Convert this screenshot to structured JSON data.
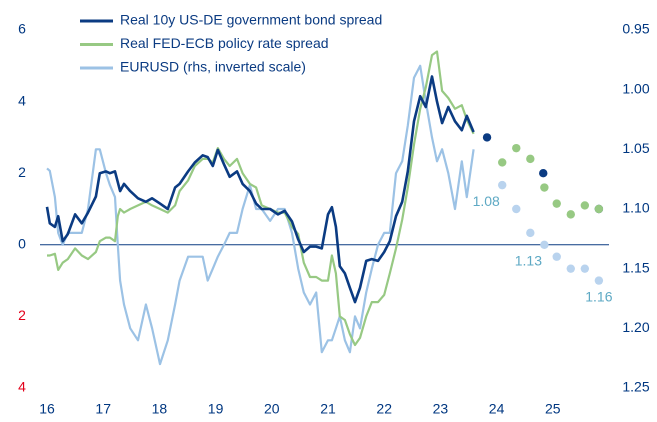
{
  "chart_data": {
    "type": "line",
    "xlim": [
      16,
      26
    ],
    "xticks": [
      16,
      17,
      18,
      19,
      20,
      21,
      22,
      23,
      24,
      25
    ],
    "ylim": [
      -4,
      6
    ],
    "yticks": [
      {
        "value": -4,
        "label": "4"
      },
      {
        "value": -2,
        "label": "2"
      },
      0,
      2,
      4,
      6
    ],
    "negative_tick_color": "#e2001a",
    "tick_color": "#003781",
    "y2lim": [
      1.25,
      0.95
    ],
    "y2ticks": [
      0.95,
      {
        "value": 1,
        "label": "1.00"
      },
      1.05,
      {
        "value": 1.1,
        "label": "1.10"
      },
      1.15,
      {
        "value": 1.2,
        "label": "1.20"
      },
      1.25
    ],
    "legend": "top-left",
    "x": [
      16.0,
      16.05,
      16.14,
      16.2,
      16.28,
      16.37,
      16.5,
      16.62,
      16.73,
      16.87,
      16.94,
      17.05,
      17.12,
      17.21,
      17.26,
      17.3,
      17.37,
      17.48,
      17.62,
      17.76,
      17.87,
      18.01,
      18.15,
      18.28,
      18.36,
      18.51,
      18.63,
      18.77,
      18.86,
      18.95,
      19.04,
      19.15,
      19.25,
      19.38,
      19.48,
      19.61,
      19.72,
      19.82,
      19.97,
      20.11,
      20.23,
      20.36,
      20.47,
      20.57,
      20.68,
      20.79,
      20.89,
      21.0,
      21.07,
      21.14,
      21.21,
      21.3,
      21.39,
      21.48,
      21.57,
      21.68,
      21.78,
      21.89,
      22.0,
      22.1,
      22.21,
      22.32,
      22.42,
      22.53,
      22.64,
      22.74,
      22.85,
      22.94,
      23.03,
      23.14,
      23.26,
      23.38,
      23.47,
      23.59
    ],
    "series": [
      {
        "name": "Real 10y US-DE government bond spread",
        "color": "#0b3b82",
        "values": [
          1.06,
          0.6,
          0.5,
          0.8,
          0.1,
          0.3,
          0.85,
          0.6,
          0.9,
          1.35,
          2.0,
          2.05,
          2.0,
          2.05,
          1.75,
          1.5,
          1.7,
          1.5,
          1.3,
          1.2,
          1.3,
          1.15,
          1.0,
          1.6,
          1.7,
          2.05,
          2.3,
          2.5,
          2.45,
          2.2,
          2.65,
          2.25,
          1.9,
          2.05,
          1.7,
          1.5,
          1.15,
          1.0,
          1.0,
          0.85,
          0.95,
          0.65,
          0.15,
          -0.2,
          -0.05,
          -0.05,
          -0.1,
          0.85,
          1.05,
          0.5,
          -0.6,
          -0.8,
          -1.2,
          -1.6,
          -1.2,
          -0.45,
          -0.4,
          -0.45,
          -0.2,
          0.1,
          0.8,
          1.2,
          2.05,
          3.45,
          4.15,
          3.85,
          4.7,
          4.0,
          3.4,
          3.85,
          3.45,
          3.2,
          3.6,
          3.15
        ]
      },
      {
        "name": "Real FED-ECB policy rate spread",
        "color": "#97c983",
        "values": [
          -0.3,
          -0.3,
          -0.25,
          -0.7,
          -0.5,
          -0.4,
          -0.1,
          -0.3,
          -0.4,
          -0.2,
          0.1,
          0.2,
          0.2,
          0.1,
          0.8,
          1.0,
          0.9,
          1.0,
          1.1,
          1.2,
          1.1,
          1.0,
          0.9,
          1.1,
          1.5,
          1.8,
          2.2,
          2.4,
          2.4,
          2.3,
          2.7,
          2.4,
          2.2,
          2.4,
          2.0,
          1.7,
          1.6,
          1.1,
          1.0,
          0.9,
          0.9,
          0.5,
          0.3,
          -0.5,
          -0.9,
          -0.9,
          -1.0,
          -1.0,
          -0.3,
          -0.8,
          -2.0,
          -2.1,
          -2.5,
          -2.8,
          -2.6,
          -2.0,
          -1.6,
          -1.6,
          -1.4,
          -0.8,
          -0.1,
          0.7,
          1.6,
          2.8,
          3.8,
          4.4,
          5.3,
          5.4,
          4.3,
          4.1,
          3.8,
          3.9,
          3.5,
          3.1
        ]
      },
      {
        "name": "EURUSD (rhs, inverted scale)",
        "color": "#9cc2e5",
        "axis": "y2",
        "values": [
          1.066,
          1.068,
          1.09,
          1.12,
          1.13,
          1.12,
          1.12,
          1.12,
          1.1,
          1.05,
          1.05,
          1.07,
          1.08,
          1.09,
          1.13,
          1.16,
          1.18,
          1.2,
          1.21,
          1.18,
          1.2,
          1.23,
          1.21,
          1.18,
          1.16,
          1.14,
          1.14,
          1.14,
          1.16,
          1.15,
          1.14,
          1.13,
          1.12,
          1.12,
          1.1,
          1.08,
          1.1,
          1.1,
          1.11,
          1.1,
          1.1,
          1.12,
          1.15,
          1.17,
          1.18,
          1.17,
          1.22,
          1.21,
          1.21,
          1.2,
          1.19,
          1.21,
          1.22,
          1.19,
          1.2,
          1.17,
          1.15,
          1.13,
          1.12,
          1.12,
          1.07,
          1.06,
          1.03,
          0.99,
          0.98,
          1.01,
          1.04,
          1.06,
          1.05,
          1.07,
          1.1,
          1.06,
          1.09,
          1.05
        ]
      },
      {
        "type": "dots",
        "color": "#0b3b82",
        "x": [
          23.83,
          24.83,
          25.82
        ],
        "values": [
          3.0,
          2.0,
          1.0
        ]
      },
      {
        "type": "dots",
        "color": "#97c983",
        "x": [
          24.1,
          24.35,
          24.6,
          24.85,
          25.07,
          25.32,
          25.57,
          25.82
        ],
        "values": [
          2.3,
          2.7,
          2.4,
          1.6,
          1.15,
          0.85,
          1.1,
          1.0
        ]
      },
      {
        "type": "dots",
        "color": "#b9d3ee",
        "axis": "y2",
        "label_color": "#5ea9c4",
        "x": [
          24.1,
          24.35,
          24.6,
          24.85,
          25.07,
          25.32,
          25.57,
          25.82
        ],
        "values": [
          1.08,
          1.1,
          1.12,
          1.13,
          1.14,
          1.15,
          1.15,
          1.16
        ],
        "value_labels": [
          "1.08",
          null,
          null,
          "1.13",
          null,
          null,
          null,
          "1.16"
        ]
      }
    ]
  }
}
